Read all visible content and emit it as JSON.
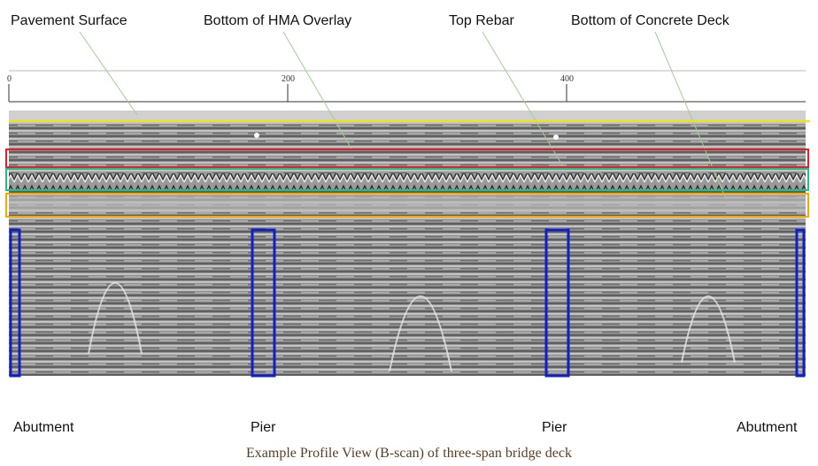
{
  "header": {
    "labels": [
      "Pavement Surface",
      "Bottom of HMA Overlay",
      "Top Rebar",
      "Bottom of Concrete Deck"
    ]
  },
  "ruler": {
    "ticks": [
      "0",
      "200",
      "400"
    ]
  },
  "footer": {
    "labels": [
      "Abutment",
      "Pier",
      "Pier",
      "Abutment"
    ]
  },
  "caption": "Example Profile View (B-scan) of three-span bridge deck"
}
